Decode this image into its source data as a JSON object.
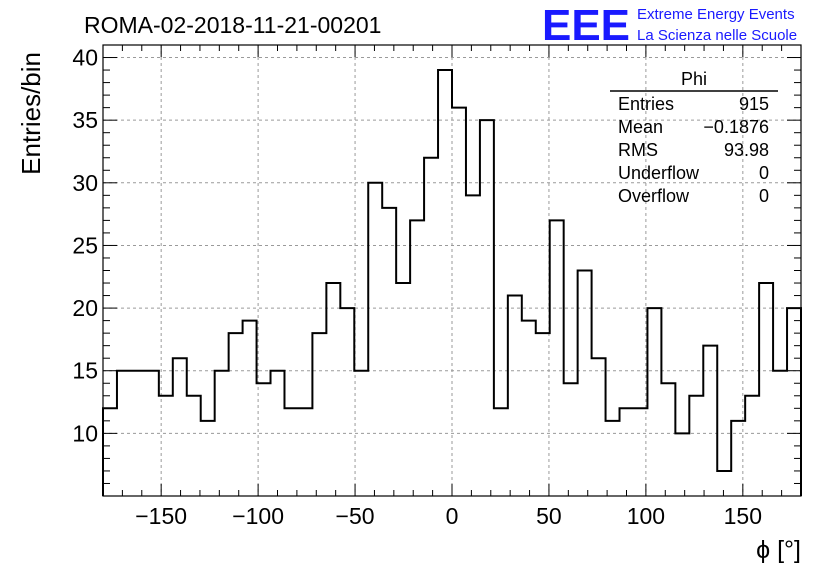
{
  "chart_data": {
    "type": "histogram",
    "title": "ROMA-02-2018-11-21-00201",
    "xlabel": "ϕ [°]",
    "ylabel": "Entries/bin",
    "xlim": [
      -180,
      180
    ],
    "ylim": [
      5,
      41
    ],
    "bin_width": 7.2,
    "x_ticks": [
      -150,
      -100,
      -50,
      0,
      50,
      100,
      150
    ],
    "x_tick_labels": [
      "−150",
      "−100",
      "−50",
      "0",
      "50",
      "100",
      "150"
    ],
    "y_ticks": [
      10,
      15,
      20,
      25,
      30,
      35,
      40
    ],
    "y_tick_labels": [
      "10",
      "15",
      "20",
      "25",
      "30",
      "35",
      "40"
    ],
    "grid": true,
    "values": [
      12,
      15,
      15,
      15,
      13,
      16,
      13,
      11,
      15,
      18,
      19,
      14,
      15,
      12,
      12,
      18,
      22,
      20,
      15,
      30,
      28,
      22,
      27,
      32,
      39,
      36,
      29,
      35,
      12,
      21,
      19,
      18,
      27,
      14,
      23,
      16,
      11,
      12,
      12,
      20,
      14,
      10,
      13,
      17,
      7,
      11,
      13,
      22,
      15,
      20
    ],
    "stats_box": {
      "title": "Phi",
      "rows": [
        {
          "label": "Entries",
          "value": "915"
        },
        {
          "label": "Mean",
          "value": "−0.1876"
        },
        {
          "label": "RMS",
          "value": "93.98"
        },
        {
          "label": "Underflow",
          "value": "0"
        },
        {
          "label": "Overflow",
          "value": "0"
        }
      ]
    }
  },
  "logo": {
    "mark": "EEE",
    "line1": "Extreme Energy Events",
    "line2": "La Scienza nelle Scuole",
    "color": "#1a1aff"
  }
}
